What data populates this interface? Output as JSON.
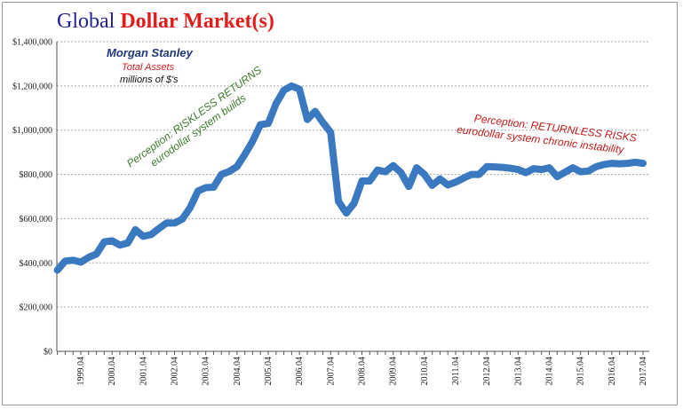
{
  "title": {
    "part1": "Global ",
    "part2": "Dollar Market(s)"
  },
  "annotations": {
    "ms_name": "Morgan Stanley",
    "ms_series": "Total Assets",
    "ms_units": "millions of $'s",
    "riskless_line1": "Perception: RISKLESS RETURNS",
    "riskless_line2": "eurodollar  system builds",
    "returnless_line1": "Perception: RETURNLESS RISKS",
    "returnless_line2": "eurodollar  system chronic instability"
  },
  "colors": {
    "line": "#3a78c0",
    "title_blue": "#1f1f99",
    "title_red": "#e31b1b",
    "green_text": "#3d7a2c",
    "red_text": "#c01b1b",
    "grid": "#aaaaaa"
  },
  "chart_data": {
    "type": "line",
    "ylim": [
      0,
      1400000
    ],
    "yticks": [
      {
        "value": 0,
        "label": "$0"
      },
      {
        "value": 200000,
        "label": "$200,000"
      },
      {
        "value": 400000,
        "label": "$400,000"
      },
      {
        "value": 600000,
        "label": "$600,000"
      },
      {
        "value": 800000,
        "label": "$800,000"
      },
      {
        "value": 1000000,
        "label": "$1,000,000"
      },
      {
        "value": 1200000,
        "label": "$1,200,000"
      },
      {
        "value": 1400000,
        "label": "$1,400,000"
      }
    ],
    "xtick_labels": [
      "1999.Q4",
      "2000.Q4",
      "2001.Q4",
      "2002.Q4",
      "2003.Q4",
      "2004.Q4",
      "2005.Q4",
      "2006.Q4",
      "2007.Q4",
      "2008.Q4",
      "2009.Q4",
      "2010.Q4",
      "2011.Q4",
      "2012.Q4",
      "2013.Q4",
      "2014.Q4",
      "2015.Q4",
      "2016.Q4",
      "2017.Q4"
    ],
    "grid": true,
    "legend": "none",
    "series": [
      {
        "x": [
          "1999.Q1",
          "1999.Q2",
          "1999.Q3",
          "1999.Q4",
          "2000.Q1",
          "2000.Q2",
          "2000.Q3",
          "2000.Q4",
          "2001.Q1",
          "2001.Q2",
          "2001.Q3",
          "2001.Q4",
          "2002.Q1",
          "2002.Q2",
          "2002.Q3",
          "2002.Q4",
          "2003.Q1",
          "2003.Q2",
          "2003.Q3",
          "2003.Q4",
          "2004.Q1",
          "2004.Q2",
          "2004.Q3",
          "2004.Q4",
          "2005.Q1",
          "2005.Q2",
          "2005.Q3",
          "2005.Q4",
          "2006.Q1",
          "2006.Q2",
          "2006.Q3",
          "2006.Q4",
          "2007.Q1",
          "2007.Q2",
          "2007.Q3",
          "2007.Q4",
          "2008.Q1",
          "2008.Q2",
          "2008.Q3",
          "2008.Q4",
          "2009.Q1",
          "2009.Q2",
          "2009.Q3",
          "2009.Q4",
          "2010.Q1",
          "2010.Q2",
          "2010.Q3",
          "2010.Q4",
          "2011.Q1",
          "2011.Q2",
          "2011.Q3",
          "2011.Q4",
          "2012.Q1",
          "2012.Q2",
          "2012.Q3",
          "2012.Q4",
          "2013.Q1",
          "2013.Q2",
          "2013.Q3",
          "2013.Q4",
          "2014.Q1",
          "2014.Q2",
          "2014.Q3",
          "2014.Q4",
          "2015.Q1",
          "2015.Q2",
          "2015.Q3",
          "2015.Q4",
          "2016.Q1",
          "2016.Q2",
          "2016.Q3",
          "2016.Q4",
          "2017.Q1",
          "2017.Q2",
          "2017.Q3",
          "2017.Q4"
        ],
        "values": [
          367000,
          408000,
          412000,
          403000,
          425000,
          440000,
          495000,
          500000,
          480000,
          490000,
          550000,
          520000,
          528000,
          555000,
          581000,
          580000,
          598000,
          650000,
          725000,
          740000,
          742000,
          800000,
          813000,
          835000,
          890000,
          950000,
          1025000,
          1030000,
          1120000,
          1180000,
          1200000,
          1185000,
          1048000,
          1085000,
          1035000,
          990000,
          678000,
          625000,
          670000,
          770000,
          770000,
          820000,
          812000,
          840000,
          808000,
          745000,
          830000,
          800000,
          750000,
          780000,
          752000,
          765000,
          783000,
          800000,
          800000,
          835000,
          834000,
          832000,
          828000,
          822000,
          808000,
          826000,
          822000,
          830000,
          790000,
          810000,
          830000,
          812000,
          815000,
          835000,
          845000,
          850000,
          848000,
          850000,
          855000,
          850000
        ]
      }
    ]
  }
}
